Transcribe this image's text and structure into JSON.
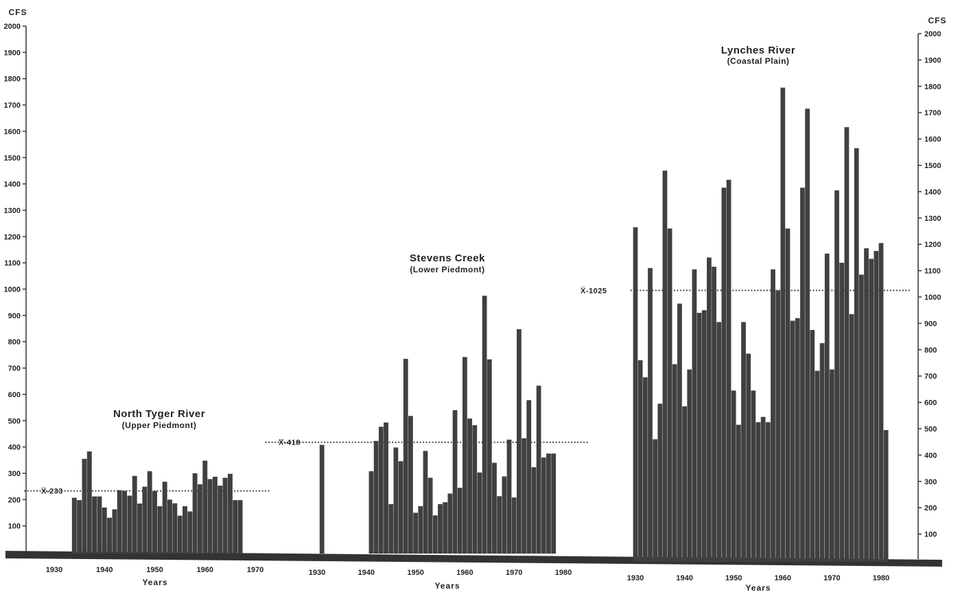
{
  "left_axis": {
    "unit_label": "CFS",
    "ticks": [
      100,
      200,
      300,
      400,
      500,
      600,
      700,
      800,
      900,
      1000,
      1100,
      1200,
      1300,
      1400,
      1500,
      1600,
      1700,
      1800,
      1900,
      2000
    ],
    "ylim": [
      0,
      2000
    ]
  },
  "right_axis": {
    "unit_label": "CFS",
    "ticks": [
      100,
      200,
      300,
      400,
      500,
      600,
      700,
      800,
      900,
      1000,
      1100,
      1200,
      1300,
      1400,
      1500,
      1600,
      1700,
      1800,
      1900,
      2000
    ],
    "ylim": [
      0,
      2000
    ]
  },
  "colors": {
    "bars": "#404040",
    "baseline": "#333333",
    "mean_line": "#444444",
    "text": "#222222"
  },
  "chart_data": [
    {
      "type": "bar",
      "title": "North Tyger River",
      "subtitle": "(Upper Piedmont)",
      "xlabel": "Years",
      "ylabel": "CFS",
      "xticks": [
        1930,
        1940,
        1950,
        1960,
        1970
      ],
      "xlim": [
        1920,
        1975
      ],
      "ylim": [
        0,
        2000
      ],
      "mean": {
        "label": "X̅-233",
        "value": 233,
        "x_range": [
          1924,
          1973
        ]
      },
      "x": [
        1934,
        1935,
        1936,
        1937,
        1938,
        1939,
        1940,
        1941,
        1942,
        1943,
        1944,
        1945,
        1946,
        1947,
        1948,
        1949,
        1950,
        1951,
        1952,
        1953,
        1954,
        1955,
        1956,
        1957,
        1958,
        1959,
        1960,
        1961,
        1962,
        1963,
        1964,
        1965,
        1966,
        1967
      ],
      "values": [
        207,
        198,
        355,
        383,
        212,
        212,
        170,
        131,
        163,
        236,
        233,
        215,
        290,
        185,
        249,
        308,
        233,
        175,
        268,
        200,
        186,
        139,
        175,
        155,
        300,
        258,
        348,
        278,
        287,
        253,
        283,
        298,
        198,
        198
      ]
    },
    {
      "type": "bar",
      "title": "Stevens Creek",
      "subtitle": "(Lower Piedmont)",
      "xlabel": "Years",
      "ylabel": "CFS",
      "xticks": [
        1930,
        1940,
        1950,
        1960,
        1970,
        1980
      ],
      "xlim": [
        1920,
        1985
      ],
      "ylim": [
        0,
        2000
      ],
      "mean": {
        "label": "X̅-418",
        "value": 418,
        "x_range": [
          1919.5,
          1985
        ]
      },
      "x": [
        1931,
        1941,
        1942,
        1943,
        1944,
        1945,
        1946,
        1947,
        1948,
        1949,
        1950,
        1951,
        1952,
        1953,
        1954,
        1955,
        1956,
        1957,
        1958,
        1959,
        1960,
        1961,
        1962,
        1963,
        1964,
        1965,
        1966,
        1967,
        1968,
        1969,
        1970,
        1971,
        1972,
        1973,
        1974,
        1975,
        1976,
        1977,
        1978
      ],
      "values": [
        408,
        308,
        423,
        477,
        493,
        183,
        398,
        346,
        735,
        518,
        150,
        175,
        385,
        283,
        140,
        183,
        190,
        223,
        540,
        245,
        742,
        508,
        483,
        303,
        975,
        733,
        340,
        213,
        288,
        428,
        208,
        848,
        433,
        578,
        323,
        633,
        360,
        375,
        375
      ]
    },
    {
      "type": "bar",
      "title": "Lynches River",
      "subtitle": "(Coastal Plain)",
      "xlabel": "Years",
      "ylabel": "CFS",
      "xticks": [
        1930,
        1940,
        1950,
        1960,
        1970,
        1980
      ],
      "xlim": [
        1930,
        1985
      ],
      "ylim": [
        0,
        2000
      ],
      "mean": {
        "label": "X̅-1025",
        "value": 1025,
        "x_range": [
          1929,
          1986
        ]
      },
      "x": [
        1930,
        1931,
        1932,
        1933,
        1934,
        1935,
        1936,
        1937,
        1938,
        1939,
        1940,
        1941,
        1942,
        1943,
        1944,
        1945,
        1946,
        1947,
        1948,
        1949,
        1950,
        1951,
        1952,
        1953,
        1954,
        1955,
        1956,
        1957,
        1958,
        1959,
        1960,
        1961,
        1962,
        1963,
        1964,
        1965,
        1966,
        1967,
        1968,
        1969,
        1970,
        1971,
        1972,
        1973,
        1974,
        1975,
        1976,
        1977,
        1978,
        1979,
        1980,
        1981
      ],
      "values": [
        1265,
        760,
        695,
        1110,
        460,
        595,
        1480,
        1260,
        745,
        975,
        585,
        725,
        1105,
        940,
        950,
        1150,
        1115,
        905,
        1415,
        1445,
        645,
        515,
        905,
        785,
        645,
        525,
        545,
        525,
        1105,
        1025,
        1795,
        1260,
        910,
        920,
        1415,
        1715,
        875,
        720,
        825,
        1165,
        725,
        1405,
        1130,
        1645,
        935,
        1565,
        1085,
        1185,
        1145,
        1175,
        1205,
        495
      ]
    }
  ]
}
